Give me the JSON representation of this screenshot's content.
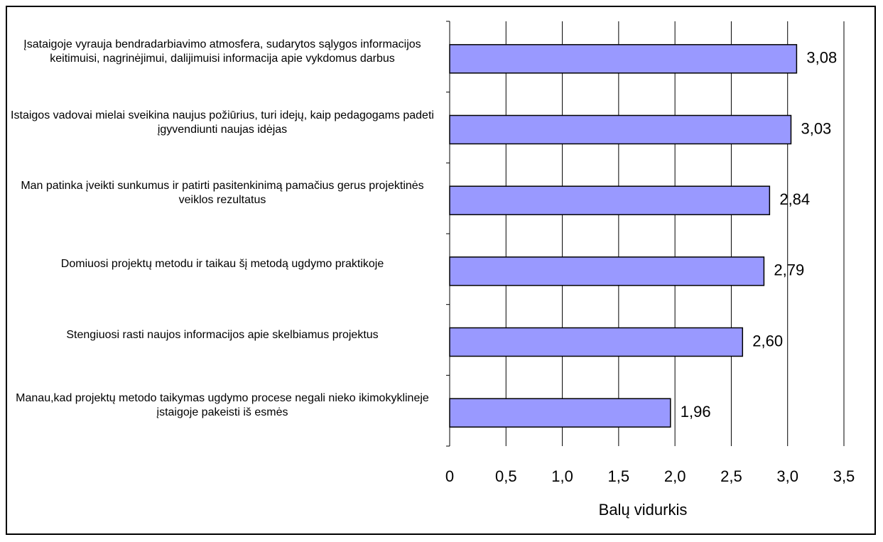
{
  "chart_data": {
    "type": "barh",
    "categories": [
      "Įsataigoje vyrauja bendradarbiavimo atmosfera, sudarytos sąlygos informacijos keitimuisi, nagrinėjimui, dalijimuisi informacija apie vykdomus darbus",
      "Istaigos vadovai mielai sveikina naujus požiūrius, turi idejų, kaip pedagogams padeti įgyvendiunti naujas idėjas",
      "Man patinka įveikti sunkumus ir patirti pasitenkinimą pamačius gerus projektinės veiklos rezultatus",
      "Domiuosi projektų metodu ir taikau šį metodą ugdymo praktikoje",
      "Stengiuosi rasti naujos informacijos apie skelbiamus projektus",
      "Manau,kad projektų metodo taikymas ugdymo procese negali nieko ikimokyklineje įstaigoje pakeisti iš esmės"
    ],
    "values": [
      3.08,
      3.03,
      2.84,
      2.79,
      2.6,
      1.96
    ],
    "value_labels": [
      "3,08",
      "3,03",
      "2,84",
      "2,79",
      "2,60",
      "1,96"
    ],
    "color": "#9999ff",
    "xlabel": "Balų vidurkis",
    "xlim": [
      0,
      3.5
    ],
    "xticks": [
      0,
      {
        "value": 0.5,
        "label": "0,5"
      },
      {
        "value": 1,
        "label": "1,0"
      },
      {
        "value": 1.5,
        "label": "1,5"
      },
      {
        "value": 2,
        "label": "2,0"
      },
      {
        "value": 2.5,
        "label": "2,5"
      },
      {
        "value": 3,
        "label": "3,0"
      },
      {
        "value": 3.5,
        "label": "3,5"
      }
    ],
    "grid": true
  }
}
